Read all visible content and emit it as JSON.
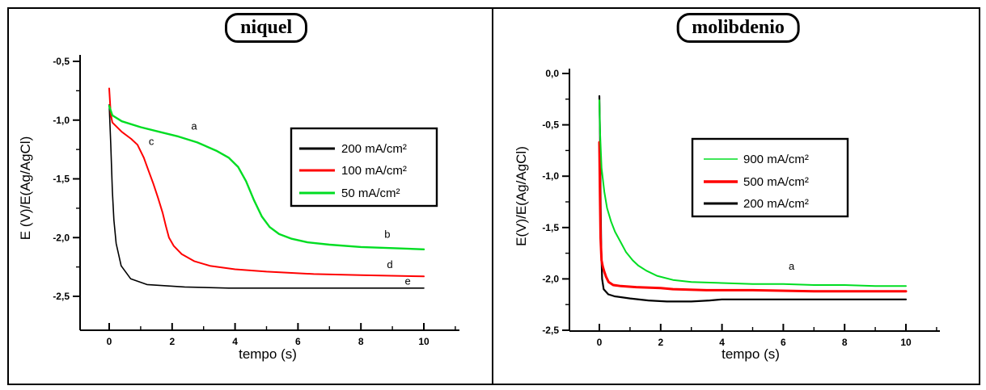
{
  "chart_data": [
    {
      "type": "line",
      "title": "niquel",
      "xlabel": "tempo (s)",
      "ylabel": "E (V)/E(Ag/AgCl)",
      "xlim": [
        0,
        11
      ],
      "ylim": [
        -2.79,
        -0.44
      ],
      "grid": "off",
      "x_ticks": {
        "major": [
          0,
          2,
          4,
          6,
          8,
          10
        ],
        "labels": [
          "0",
          "2",
          "4",
          "6",
          "8",
          "10"
        ],
        "minor": [
          1,
          3,
          5,
          7,
          9,
          11
        ]
      },
      "y_ticks": {
        "major": [
          -0.5,
          -1.0,
          -1.5,
          -2.0,
          -2.5
        ],
        "labels": [
          "-0,5",
          "-1,0",
          "-1,5",
          "-2,0",
          "-2,5"
        ],
        "minor": [
          -0.75,
          -1.25,
          -1.75,
          -2.25
        ]
      },
      "legend": {
        "position": "center-right-inside",
        "entries": [
          {
            "label": "200 mA/cm²",
            "color": "#000000",
            "line_width": 3
          },
          {
            "label": "100 mA/cm²",
            "color": "#ff0000",
            "line_width": 3
          },
          {
            "label": "50 mA/cm²",
            "color": "#00dd22",
            "line_width": 3
          }
        ]
      },
      "annotations": [
        {
          "text": "a",
          "x": 2.7,
          "y": -1.08
        },
        {
          "text": "c",
          "x": 1.34,
          "y": -1.21
        },
        {
          "text": "b",
          "x": 8.84,
          "y": -2.0
        },
        {
          "text": "d",
          "x": 8.92,
          "y": -2.26
        },
        {
          "text": "e",
          "x": 9.49,
          "y": -2.4
        }
      ],
      "series": [
        {
          "name": "200 mA/cm²",
          "color": "#000000",
          "line_width": 1.6,
          "points": [
            [
              0,
              -0.87
            ],
            [
              0.05,
              -1.2
            ],
            [
              0.1,
              -1.6
            ],
            [
              0.15,
              -1.85
            ],
            [
              0.22,
              -2.05
            ],
            [
              0.38,
              -2.24
            ],
            [
              0.68,
              -2.35
            ],
            [
              1.2,
              -2.4
            ],
            [
              2.4,
              -2.42
            ],
            [
              3.8,
              -2.43
            ],
            [
              6,
              -2.43
            ],
            [
              8,
              -2.43
            ],
            [
              10,
              -2.43
            ]
          ]
        },
        {
          "name": "100 mA/cm²",
          "color": "#ff0000",
          "line_width": 2,
          "points": [
            [
              0,
              -0.73
            ],
            [
              0.05,
              -0.95
            ],
            [
              0.1,
              -1.02
            ],
            [
              0.4,
              -1.1
            ],
            [
              0.7,
              -1.16
            ],
            [
              0.9,
              -1.21
            ],
            [
              1.1,
              -1.32
            ],
            [
              1.25,
              -1.43
            ],
            [
              1.4,
              -1.54
            ],
            [
              1.55,
              -1.66
            ],
            [
              1.7,
              -1.79
            ],
            [
              1.8,
              -1.9
            ],
            [
              1.9,
              -2.0
            ],
            [
              2.05,
              -2.07
            ],
            [
              2.3,
              -2.14
            ],
            [
              2.7,
              -2.2
            ],
            [
              3.2,
              -2.24
            ],
            [
              4,
              -2.27
            ],
            [
              5,
              -2.29
            ],
            [
              6.5,
              -2.31
            ],
            [
              8,
              -2.32
            ],
            [
              10,
              -2.33
            ]
          ]
        },
        {
          "name": "50 mA/cm²",
          "color": "#00dd22",
          "line_width": 2.4,
          "points": [
            [
              0,
              -0.88
            ],
            [
              0.1,
              -0.96
            ],
            [
              0.4,
              -1.01
            ],
            [
              1,
              -1.06
            ],
            [
              1.6,
              -1.1
            ],
            [
              2.2,
              -1.14
            ],
            [
              2.8,
              -1.19
            ],
            [
              3.4,
              -1.26
            ],
            [
              3.8,
              -1.32
            ],
            [
              4.1,
              -1.4
            ],
            [
              4.35,
              -1.52
            ],
            [
              4.6,
              -1.68
            ],
            [
              4.85,
              -1.82
            ],
            [
              5.1,
              -1.91
            ],
            [
              5.4,
              -1.97
            ],
            [
              5.8,
              -2.01
            ],
            [
              6.3,
              -2.04
            ],
            [
              7,
              -2.06
            ],
            [
              8,
              -2.08
            ],
            [
              9,
              -2.09
            ],
            [
              10,
              -2.1
            ]
          ]
        }
      ]
    },
    {
      "type": "line",
      "title": "molibdenio",
      "xlabel": "tempo (s)",
      "ylabel": "E(V)/E(Ag/AgCl)",
      "xlim": [
        0,
        11
      ],
      "ylim": [
        -2.55,
        0.05
      ],
      "grid": "off",
      "x_ticks": {
        "major": [
          0,
          2,
          4,
          6,
          8,
          10
        ],
        "labels": [
          "0",
          "2",
          "4",
          "6",
          "8",
          "10"
        ],
        "minor": [
          1,
          3,
          5,
          7,
          9,
          11
        ]
      },
      "y_ticks": {
        "major": [
          0.0,
          -0.5,
          -1.0,
          -1.5,
          -2.0,
          -2.5
        ],
        "labels": [
          "0,0",
          "-0,5",
          "-1,0",
          "-1,5",
          "-2,0",
          "-2,5"
        ],
        "minor": [
          -0.25,
          -0.75,
          -1.25,
          -1.75,
          -2.25
        ]
      },
      "legend": {
        "position": "upper-center-inside",
        "entries": [
          {
            "label": "900 mA/cm²",
            "color": "#00dd22",
            "line_width": 1.5
          },
          {
            "label": "500 mA/cm²",
            "color": "#ff0000",
            "line_width": 3.5
          },
          {
            "label": "200 mA/cm²",
            "color": "#000000",
            "line_width": 3
          }
        ]
      },
      "annotations": [
        {
          "text": "a",
          "x": 6.27,
          "y": -1.91
        }
      ],
      "series": [
        {
          "name": "200 mA/cm²",
          "color": "#000000",
          "line_width": 2.2,
          "points": [
            [
              0,
              -0.22
            ],
            [
              0.02,
              -0.6
            ],
            [
              0.04,
              -1.2
            ],
            [
              0.06,
              -1.7
            ],
            [
              0.09,
              -2.0
            ],
            [
              0.14,
              -2.1
            ],
            [
              0.29,
              -2.15
            ],
            [
              0.5,
              -2.17
            ],
            [
              1,
              -2.19
            ],
            [
              1.6,
              -2.21
            ],
            [
              2.2,
              -2.22
            ],
            [
              3,
              -2.22
            ],
            [
              3.6,
              -2.21
            ],
            [
              4,
              -2.2
            ],
            [
              5,
              -2.2
            ],
            [
              6,
              -2.2
            ],
            [
              8,
              -2.2
            ],
            [
              10,
              -2.2
            ]
          ]
        },
        {
          "name": "500 mA/cm²",
          "color": "#ff0000",
          "line_width": 3,
          "points": [
            [
              0,
              -0.67
            ],
            [
              0.02,
              -1.2
            ],
            [
              0.04,
              -1.6
            ],
            [
              0.07,
              -1.82
            ],
            [
              0.11,
              -1.88
            ],
            [
              0.16,
              -1.93
            ],
            [
              0.22,
              -1.98
            ],
            [
              0.3,
              -2.03
            ],
            [
              0.45,
              -2.06
            ],
            [
              0.7,
              -2.07
            ],
            [
              1.2,
              -2.08
            ],
            [
              2,
              -2.09
            ],
            [
              2.4,
              -2.1
            ],
            [
              3.5,
              -2.11
            ],
            [
              5,
              -2.11
            ],
            [
              7,
              -2.12
            ],
            [
              10,
              -2.12
            ]
          ]
        },
        {
          "name": "900 mA/cm²",
          "color": "#00dd22",
          "line_width": 2,
          "points": [
            [
              0,
              -0.26
            ],
            [
              0.02,
              -0.56
            ],
            [
              0.07,
              -0.92
            ],
            [
              0.16,
              -1.15
            ],
            [
              0.25,
              -1.31
            ],
            [
              0.38,
              -1.44
            ],
            [
              0.51,
              -1.54
            ],
            [
              0.69,
              -1.64
            ],
            [
              0.87,
              -1.74
            ],
            [
              1.09,
              -1.82
            ],
            [
              1.27,
              -1.87
            ],
            [
              1.53,
              -1.92
            ],
            [
              1.88,
              -1.97
            ],
            [
              2.4,
              -2.01
            ],
            [
              3,
              -2.03
            ],
            [
              4,
              -2.04
            ],
            [
              5,
              -2.05
            ],
            [
              6,
              -2.05
            ],
            [
              7,
              -2.06
            ],
            [
              8,
              -2.06
            ],
            [
              9,
              -2.07
            ],
            [
              10,
              -2.07
            ]
          ]
        }
      ]
    }
  ]
}
